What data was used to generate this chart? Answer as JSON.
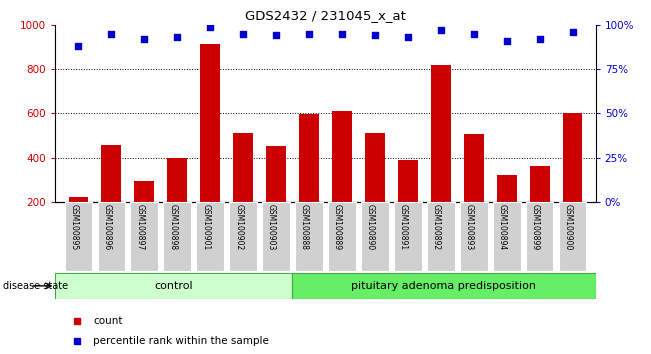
{
  "title": "GDS2432 / 231045_x_at",
  "samples": [
    "GSM100895",
    "GSM100896",
    "GSM100897",
    "GSM100898",
    "GSM100901",
    "GSM100902",
    "GSM100903",
    "GSM100888",
    "GSM100889",
    "GSM100890",
    "GSM100891",
    "GSM100892",
    "GSM100893",
    "GSM100894",
    "GSM100899",
    "GSM100900"
  ],
  "bar_values": [
    220,
    455,
    295,
    400,
    915,
    510,
    450,
    598,
    610,
    510,
    390,
    820,
    505,
    320,
    360,
    600
  ],
  "percentile_values": [
    88,
    95,
    92,
    93,
    99,
    95,
    94,
    95,
    95,
    94,
    93,
    97,
    95,
    91,
    92,
    96
  ],
  "bar_color": "#cc0000",
  "dot_color": "#0000cc",
  "ylim_left": [
    200,
    1000
  ],
  "ylim_right": [
    0,
    100
  ],
  "yticks_left": [
    200,
    400,
    600,
    800,
    1000
  ],
  "yticks_right": [
    0,
    25,
    50,
    75,
    100
  ],
  "ytick_labels_right": [
    "0%",
    "25%",
    "50%",
    "75%",
    "100%"
  ],
  "grid_values": [
    400,
    600,
    800
  ],
  "control_count": 7,
  "disease_label": "disease state",
  "control_label": "control",
  "disease_state_label": "pituitary adenoma predisposition",
  "legend_count": "count",
  "legend_percentile": "percentile rank within the sample",
  "bar_width": 0.6,
  "bg_color": "#ffffff",
  "control_bg": "#ccffcc",
  "disease_bg": "#66ee66",
  "sample_bg": "#d0d0d0"
}
